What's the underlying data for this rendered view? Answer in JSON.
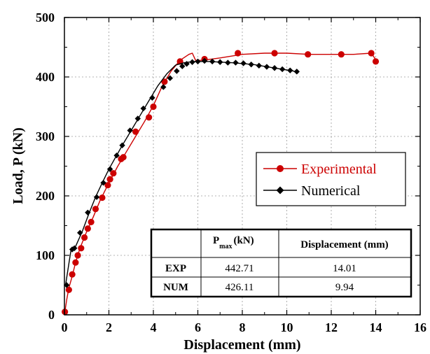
{
  "chart_data": {
    "type": "line",
    "title": "",
    "xlabel": "Displacement (mm)",
    "ylabel": "Load, P (kN)",
    "xlim": [
      0,
      16
    ],
    "ylim": [
      0,
      500
    ],
    "xticks": [
      "0",
      "2",
      "4",
      "6",
      "8",
      "10",
      "12",
      "14",
      "16"
    ],
    "yticks": [
      "0",
      "100",
      "200",
      "300",
      "400",
      "500"
    ],
    "grid": true,
    "legend_position": "right",
    "series": [
      {
        "name": "Experimental",
        "color": "#cc0000",
        "marker": "circle",
        "line": [
          [
            0,
            0
          ],
          [
            0.1,
            25
          ],
          [
            0.2,
            45
          ],
          [
            0.35,
            65
          ],
          [
            0.5,
            88
          ],
          [
            0.7,
            112
          ],
          [
            1,
            140
          ],
          [
            1.3,
            165
          ],
          [
            1.6,
            192
          ],
          [
            2,
            222
          ],
          [
            2.4,
            250
          ],
          [
            2.8,
            275
          ],
          [
            3.2,
            300
          ],
          [
            3.6,
            325
          ],
          [
            4,
            352
          ],
          [
            4.4,
            385
          ],
          [
            4.8,
            410
          ],
          [
            5.2,
            428
          ],
          [
            5.6,
            438
          ],
          [
            5.75,
            440
          ],
          [
            5.9,
            428
          ],
          [
            6.2,
            428
          ],
          [
            7,
            432
          ],
          [
            8,
            438
          ],
          [
            9,
            440
          ],
          [
            10,
            440
          ],
          [
            11,
            438
          ],
          [
            12,
            438
          ],
          [
            13,
            438
          ],
          [
            13.8,
            440
          ],
          [
            13.95,
            432
          ],
          [
            14.01,
            425
          ]
        ],
        "markers": [
          [
            0.02,
            5
          ],
          [
            0.2,
            42
          ],
          [
            0.35,
            68
          ],
          [
            0.5,
            88
          ],
          [
            0.6,
            100
          ],
          [
            0.75,
            112
          ],
          [
            0.9,
            130
          ],
          [
            1.05,
            145
          ],
          [
            1.2,
            156
          ],
          [
            1.4,
            178
          ],
          [
            1.7,
            197
          ],
          [
            1.95,
            218
          ],
          [
            2.05,
            228
          ],
          [
            2.2,
            238
          ],
          [
            2.55,
            262
          ],
          [
            2.65,
            265
          ],
          [
            3.2,
            308
          ],
          [
            3.8,
            332
          ],
          [
            4.0,
            350
          ],
          [
            4.5,
            392
          ],
          [
            5.2,
            426
          ],
          [
            6.3,
            430
          ],
          [
            7.8,
            440
          ],
          [
            9.45,
            440
          ],
          [
            10.95,
            438
          ],
          [
            12.45,
            438
          ],
          [
            13.8,
            440
          ],
          [
            14.0,
            426
          ]
        ]
      },
      {
        "name": "Numerical",
        "color": "#000000",
        "marker": "diamond",
        "line": [
          [
            0.05,
            50
          ],
          [
            0.3,
            110
          ],
          [
            0.5,
            115
          ],
          [
            0.8,
            140
          ],
          [
            1.1,
            170
          ],
          [
            1.4,
            198
          ],
          [
            1.7,
            222
          ],
          [
            2,
            245
          ],
          [
            2.3,
            265
          ],
          [
            2.6,
            285
          ],
          [
            3,
            310
          ],
          [
            3.4,
            335
          ],
          [
            3.8,
            360
          ],
          [
            4.2,
            385
          ],
          [
            4.6,
            405
          ],
          [
            5,
            420
          ],
          [
            5.4,
            424
          ],
          [
            5.8,
            426
          ],
          [
            6.5,
            426
          ],
          [
            7.5,
            424
          ],
          [
            8.5,
            421
          ],
          [
            9.3,
            416
          ],
          [
            9.8,
            413
          ],
          [
            10.3,
            410
          ],
          [
            10.5,
            406
          ]
        ],
        "markers": [
          [
            0.1,
            50
          ],
          [
            0.35,
            110
          ],
          [
            0.45,
            112
          ],
          [
            0.7,
            138
          ],
          [
            1.05,
            172
          ],
          [
            1.45,
            198
          ],
          [
            1.75,
            222
          ],
          [
            2.05,
            245
          ],
          [
            2.35,
            268
          ],
          [
            2.6,
            285
          ],
          [
            2.95,
            310
          ],
          [
            3.3,
            330
          ],
          [
            3.55,
            347
          ],
          [
            3.95,
            365
          ],
          [
            4.45,
            383
          ],
          [
            4.75,
            398
          ],
          [
            5.05,
            410
          ],
          [
            5.3,
            418
          ],
          [
            5.5,
            422
          ],
          [
            5.75,
            425
          ],
          [
            6.0,
            426
          ],
          [
            6.3,
            427
          ],
          [
            6.65,
            426
          ],
          [
            7.0,
            425
          ],
          [
            7.35,
            424
          ],
          [
            7.7,
            424
          ],
          [
            8.05,
            423
          ],
          [
            8.4,
            421
          ],
          [
            8.75,
            419
          ],
          [
            9.1,
            417
          ],
          [
            9.45,
            415
          ],
          [
            9.8,
            413
          ],
          [
            10.15,
            411
          ],
          [
            10.45,
            409
          ]
        ]
      }
    ],
    "table": {
      "col_headers": [
        {
          "main": "P",
          "sub": "max",
          "suffix": "(kN)"
        },
        {
          "main": "Displacement (mm)"
        }
      ],
      "rows": [
        {
          "label": "EXP",
          "values": [
            "442.71",
            "14.01"
          ]
        },
        {
          "label": "NUM",
          "values": [
            "426.11",
            "9.94"
          ]
        }
      ]
    }
  }
}
